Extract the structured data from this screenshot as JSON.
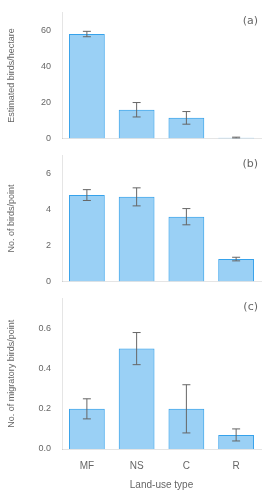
{
  "chart_data": [
    {
      "type": "bar",
      "categories": [
        "MF",
        "NS",
        "C",
        "R"
      ],
      "values": [
        58.0,
        16.0,
        11.5,
        0.5
      ],
      "errors": [
        1.5,
        4.0,
        3.5,
        0.3
      ],
      "ylabel": "Estimated birds/hectare",
      "ylim": [
        0,
        70
      ],
      "yticks": [
        0,
        20,
        40,
        60
      ],
      "annotation": "(a)",
      "tick_labels": "y",
      "grid": false
    },
    {
      "type": "bar",
      "categories": [
        "MF",
        "NS",
        "C",
        "R"
      ],
      "values": [
        4.8,
        4.7,
        3.6,
        1.25
      ],
      "errors": [
        0.3,
        0.5,
        0.45,
        0.1
      ],
      "ylabel": "No. of birds/point",
      "ylim": [
        0,
        7
      ],
      "yticks": [
        0,
        2,
        4,
        6
      ],
      "annotation": "(b)",
      "tick_labels": "y",
      "grid": false
    },
    {
      "type": "bar",
      "categories": [
        "MF",
        "NS",
        "C",
        "R"
      ],
      "values": [
        0.2,
        0.5,
        0.2,
        0.07
      ],
      "errors": [
        0.05,
        0.08,
        0.12,
        0.03
      ],
      "ylabel": "No. of migratory birds/point",
      "xlabel": "Land-use type",
      "ylim": [
        0,
        0.75
      ],
      "yticks": [
        {
          "value": 0.0,
          "label": "0.0"
        },
        0.2,
        0.4,
        0.6
      ],
      "annotation": "(c)",
      "grid": false
    }
  ]
}
